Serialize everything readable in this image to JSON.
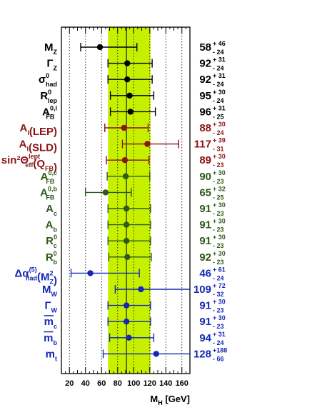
{
  "chart_data": {
    "type": "scatter",
    "xlabel": "M_H [GeV]",
    "xlim": [
      10,
      170
    ],
    "xticks": [
      "20",
      "40",
      "60",
      "80",
      "100",
      "120",
      "140",
      "160"
    ],
    "band": {
      "center": 91,
      "lo": 68,
      "hi": 121
    },
    "grid": "vertical dotted",
    "colors": {
      "black": "#000000",
      "red": "#8c1414",
      "green": "#2e5a1a",
      "blue": "#1428b4",
      "band": "#c6f000"
    },
    "points": [
      {
        "label": "M",
        "sub": "Z",
        "color": "black",
        "value": 58,
        "plus": 46,
        "minus": 24,
        "val_text": "58",
        "plus_text": "+ 46",
        "minus_text": "- 24"
      },
      {
        "label": "Γ",
        "sub": "Z",
        "color": "black",
        "value": 92,
        "plus": 31,
        "minus": 24,
        "val_text": "92",
        "plus_text": "+ 31",
        "minus_text": "- 24"
      },
      {
        "label": "σ",
        "sup": "0",
        "sub": "had",
        "color": "black",
        "value": 92,
        "plus": 31,
        "minus": 24,
        "val_text": "92",
        "plus_text": "+ 31",
        "minus_text": "- 24"
      },
      {
        "label": "R",
        "sup": "0",
        "sub": "lep",
        "color": "black",
        "value": 95,
        "plus": 30,
        "minus": 24,
        "val_text": "95",
        "plus_text": "+ 30",
        "minus_text": "- 24"
      },
      {
        "label": "A",
        "sup": "0,l",
        "sub": "FB",
        "color": "black",
        "value": 96,
        "plus": 31,
        "minus": 25,
        "val_text": "96",
        "plus_text": "+ 31",
        "minus_text": "- 25"
      },
      {
        "label": "A",
        "sub": "l",
        "suffix": "(LEP)",
        "color": "red",
        "value": 88,
        "plus": 30,
        "minus": 24,
        "val_text": "88",
        "plus_text": "+ 30",
        "minus_text": "- 24"
      },
      {
        "label": "A",
        "sub": "l",
        "suffix": "(SLD)",
        "color": "red",
        "value": 117,
        "plus": 39,
        "minus": 31,
        "val_text": "117",
        "plus_text": "+ 39",
        "minus_text": "- 31"
      },
      {
        "label": "sin²Θ",
        "sup": "lept",
        "sub": "eff",
        "suffix": "(Q",
        "suffix_sub": "FB",
        "suffix_end": ")",
        "color": "red",
        "value": 89,
        "plus": 30,
        "minus": 23,
        "val_text": "89",
        "plus_text": "+ 30",
        "minus_text": "- 23"
      },
      {
        "label": "A",
        "sup": "0,c",
        "sub": "FB",
        "color": "green",
        "value": 90,
        "plus": 30,
        "minus": 23,
        "val_text": "90",
        "plus_text": "+ 30",
        "minus_text": "- 23"
      },
      {
        "label": "A",
        "sup": "0,b",
        "sub": "FB",
        "color": "green",
        "value": 65,
        "plus": 32,
        "minus": 25,
        "val_text": "65",
        "plus_text": "+ 32",
        "minus_text": "- 25"
      },
      {
        "label": "A",
        "sub": "c",
        "color": "green",
        "value": 91,
        "plus": 30,
        "minus": 23,
        "val_text": "91",
        "plus_text": "+ 30",
        "minus_text": "- 23"
      },
      {
        "label": "A",
        "sub": "b",
        "color": "green",
        "value": 91,
        "plus": 30,
        "minus": 23,
        "val_text": "91",
        "plus_text": "+ 30",
        "minus_text": "- 23"
      },
      {
        "label": "R",
        "sup": "0",
        "sub": "c",
        "color": "green",
        "value": 91,
        "plus": 30,
        "minus": 23,
        "val_text": "91",
        "plus_text": "+ 30",
        "minus_text": "- 23"
      },
      {
        "label": "R",
        "sup": "0",
        "sub": "b",
        "color": "green",
        "value": 92,
        "plus": 30,
        "minus": 23,
        "val_text": "92",
        "plus_text": "+ 30",
        "minus_text": "- 23"
      },
      {
        "label": "Δα",
        "sup": "(5)",
        "sub": "had",
        "suffix": "(M",
        "suffix_sup": "2",
        "suffix_sub": "Z",
        "suffix_end": ")",
        "color": "blue",
        "value": 46,
        "plus": 61,
        "minus": 24,
        "val_text": "46",
        "plus_text": "+ 61",
        "minus_text": "- 24"
      },
      {
        "label": "M",
        "sub": "W",
        "color": "blue",
        "value": 109,
        "plus": 72,
        "minus": 32,
        "val_text": "109",
        "plus_text": "+ 72",
        "minus_text": "- 32"
      },
      {
        "label": "Γ",
        "sub": "W",
        "color": "blue",
        "value": 91,
        "plus": 30,
        "minus": 23,
        "val_text": "91",
        "plus_text": "+ 30",
        "minus_text": "- 23"
      },
      {
        "label": "m",
        "overline": true,
        "sub": "c",
        "color": "blue",
        "value": 91,
        "plus": 30,
        "minus": 23,
        "val_text": "91",
        "plus_text": "+ 30",
        "minus_text": "- 23"
      },
      {
        "label": "m",
        "overline": true,
        "sub": "b",
        "color": "blue",
        "value": 94,
        "plus": 31,
        "minus": 24,
        "val_text": "94",
        "plus_text": "+ 31",
        "minus_text": "- 24"
      },
      {
        "label": "m",
        "sub": "t",
        "color": "blue",
        "value": 128,
        "plus": 188,
        "minus": 66,
        "val_text": "128",
        "plus_text": "+188",
        "minus_text": "- 66"
      }
    ]
  }
}
